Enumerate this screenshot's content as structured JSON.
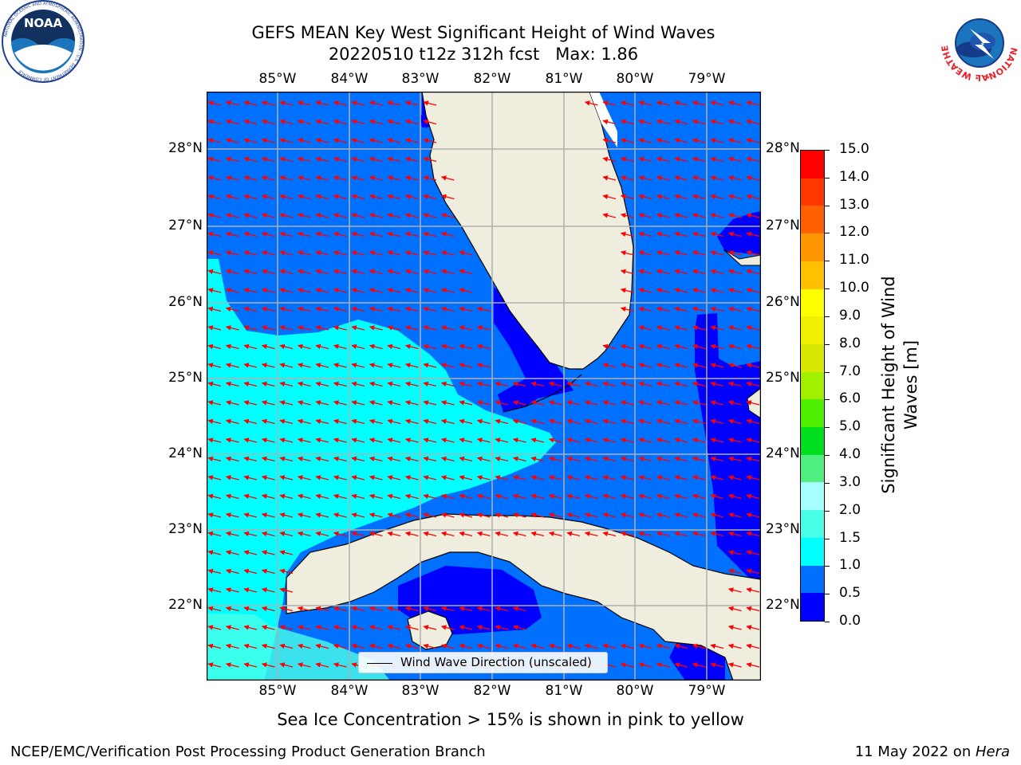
{
  "title": {
    "line1": "GEFS MEAN Key West Significant Height of Wind Waves",
    "line2": "20220510 t12z 312h fcst   Max: 1.86"
  },
  "logos": {
    "noaa": {
      "text": "NOAA",
      "ring_text": "NATIONAL OCEANIC AND ATMOSPHERIC ADMINISTRATION · U.S. DEPARTMENT OF COMMERCE"
    },
    "nws": {
      "ring_text": "NATIONAL WEATHER SERVICE"
    }
  },
  "map": {
    "x_ticks": [
      "85°W",
      "84°W",
      "83°W",
      "82°W",
      "81°W",
      "80°W",
      "79°W"
    ],
    "y_ticks": [
      "28°N",
      "27°N",
      "26°N",
      "25°N",
      "24°N",
      "23°N",
      "22°N"
    ],
    "legend": "Wind Wave Direction (unscaled)",
    "arrow_color": "#ff0000",
    "land_color": "#efedde",
    "grid_color": "#b0b0b0",
    "wave_direction": "toward west-northwest"
  },
  "colorbar": {
    "label": "Significant Height of Wind Waves [m]",
    "ticks": [
      "15.0",
      "14.0",
      "13.0",
      "12.0",
      "11.0",
      "10.0",
      "9.0",
      "8.0",
      "7.0",
      "6.0",
      "5.0",
      "4.0",
      "3.0",
      "2.0",
      "1.5",
      "1.0",
      "0.5",
      "0.0"
    ],
    "levels": [
      0,
      0.5,
      1.0,
      1.5,
      2.0,
      3.0,
      4.0,
      5.0,
      6.0,
      7.0,
      8.0,
      9.0,
      10.0,
      11.0,
      12.0,
      13.0,
      14.0,
      15.0
    ],
    "colors": [
      "#0000ff",
      "#0070ff",
      "#00ffff",
      "#48ffe8",
      "#a8ffff",
      "#50f080",
      "#00e020",
      "#50ef00",
      "#a0f000",
      "#d8e800",
      "#f0f000",
      "#ffff00",
      "#ffc000",
      "#ff9800",
      "#ff6000",
      "#ff3800",
      "#ff0000"
    ]
  },
  "note": "Sea Ice Concentration > 15% is shown in pink to yellow",
  "footer": {
    "left": "NCEP/EMC/Verification Post Processing Product Generation Branch",
    "right_date": "11 May 2022 on ",
    "right_host": "Hera"
  }
}
